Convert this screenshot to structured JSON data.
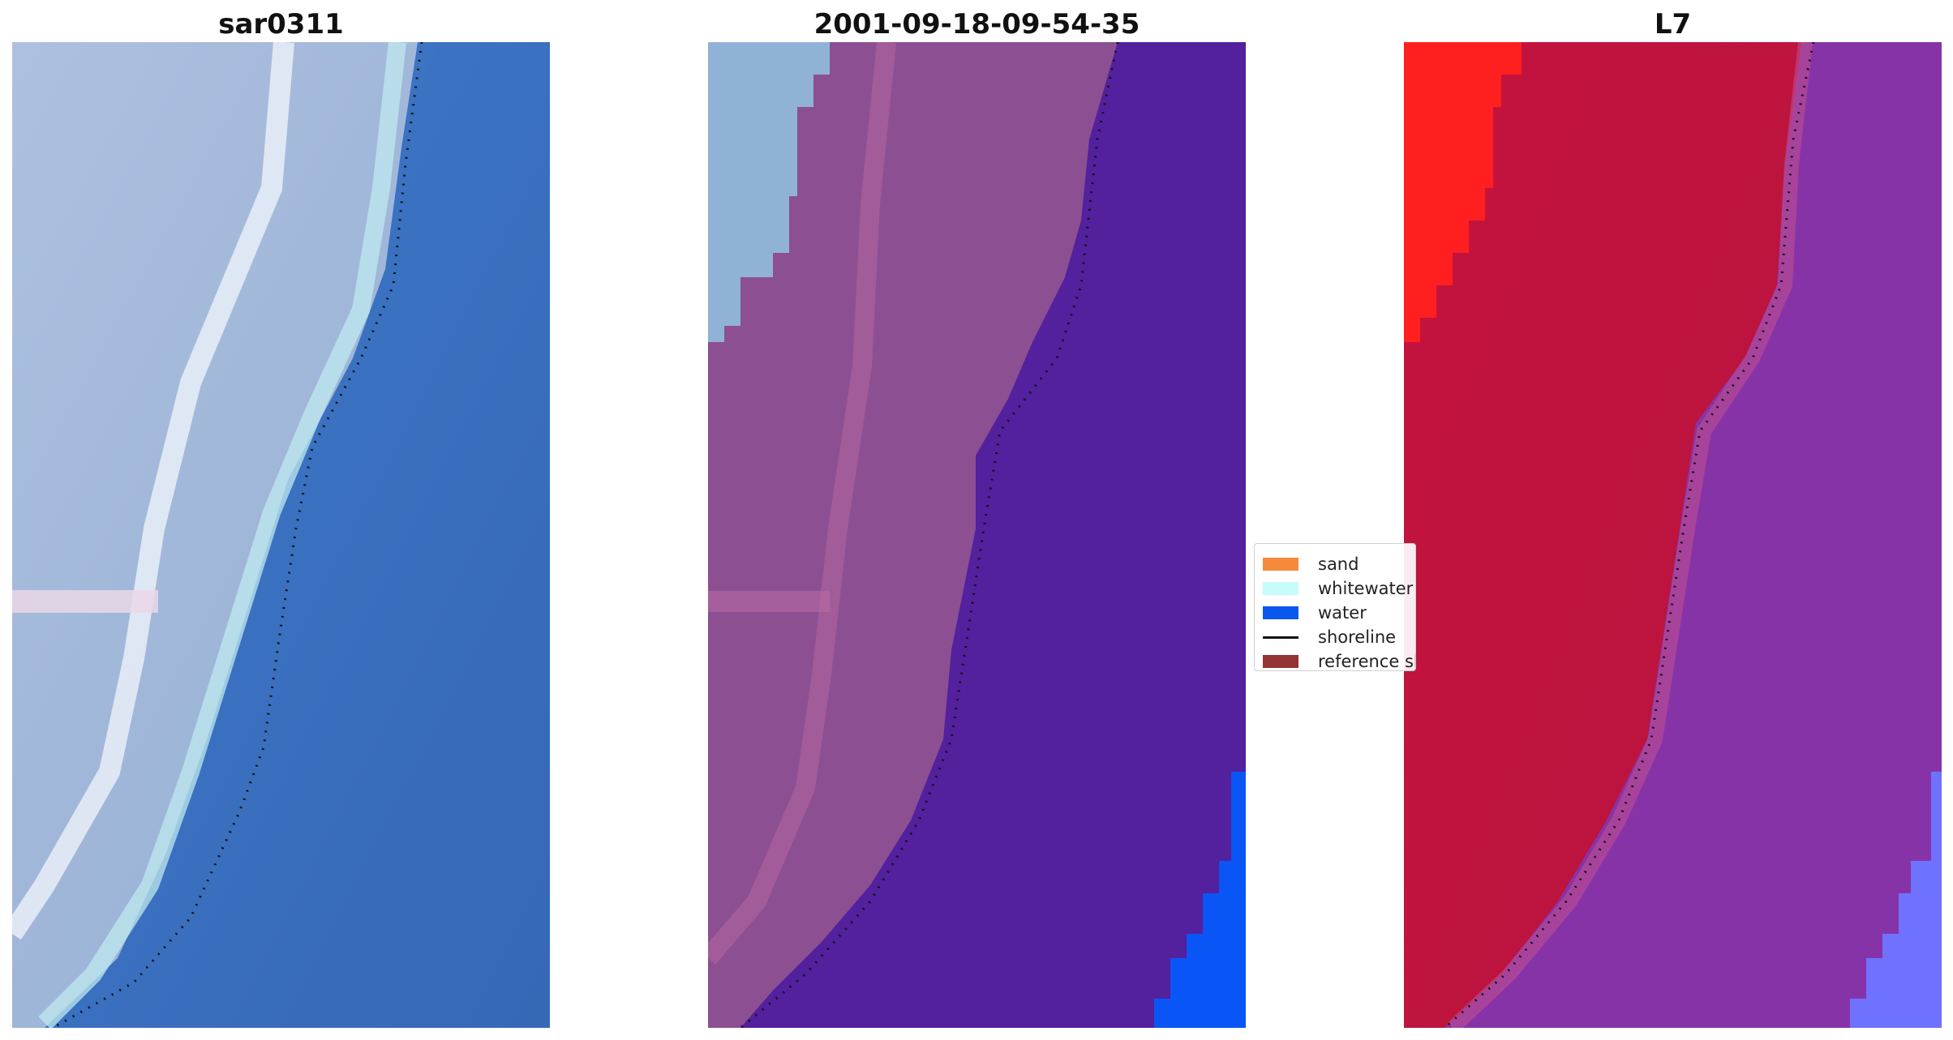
{
  "titles": {
    "left": "sar0311",
    "middle": "2001-09-18-09-54-35",
    "right": "L7"
  },
  "legend": {
    "items": [
      {
        "label": "sand",
        "color": "#f58a3d"
      },
      {
        "label": "whitewater",
        "color": "#c8fbfb"
      },
      {
        "label": "water",
        "color": "#0a57f0"
      },
      {
        "label": "shoreline",
        "color": "#111111"
      },
      {
        "label": "reference shoreline",
        "color": "#943333"
      }
    ]
  },
  "colors": {
    "left_land": "#a3b7d9",
    "left_water": "#3d73c1",
    "left_road": "#e6eef7",
    "middle_land": "#8c4f92",
    "middle_water": "#53209e",
    "middle_bright_water": "#0a55f5",
    "middle_whitewater": "#8fb2d7",
    "right_land": "#bd0f3e",
    "right_bright": "#ff1f1f",
    "right_water": "#8632a8",
    "right_light_water": "#6f72ff"
  }
}
